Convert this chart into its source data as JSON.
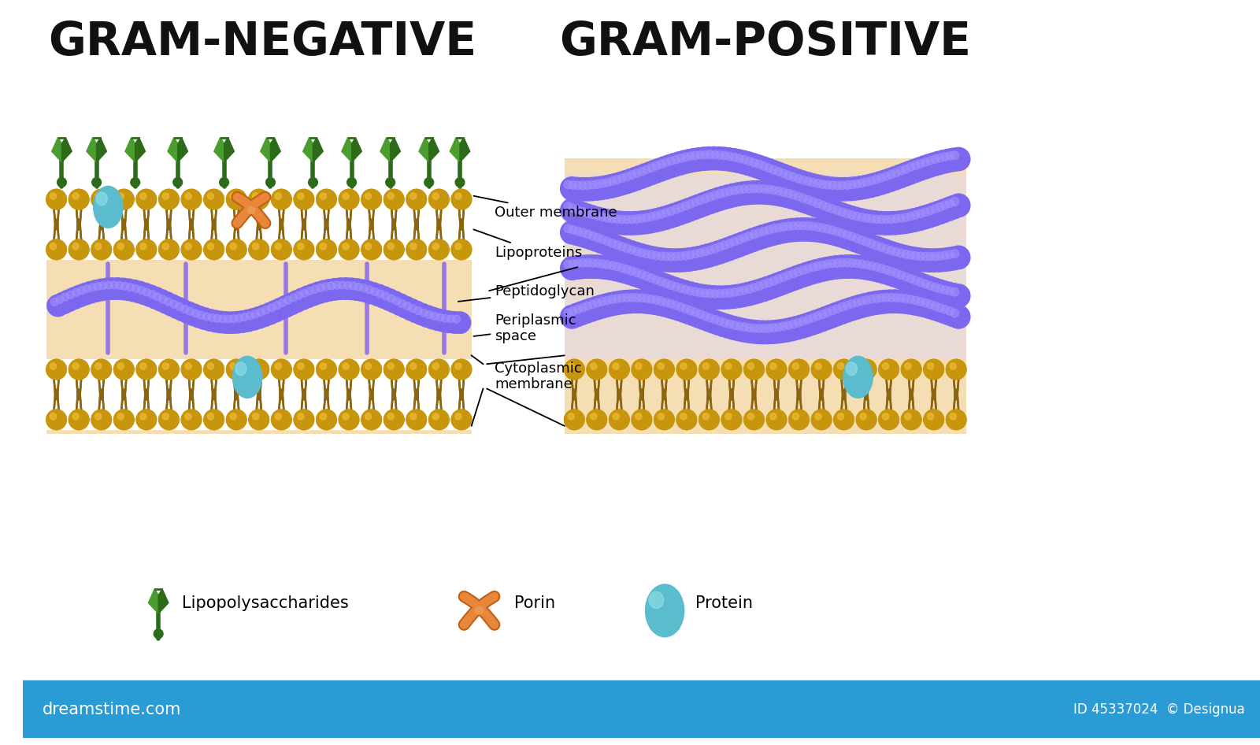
{
  "title_left": "GRAM-NEGATIVE",
  "title_right": "GRAM-POSITIVE",
  "bg_color": "#ffffff",
  "membrane_bg": "#f5deb3",
  "lipid_head_color": "#c8960c",
  "lipid_tail_color": "#8b6410",
  "purple_bead_color": "#7b68ee",
  "teal_protein_color": "#5abccc",
  "orange_porin_color": "#e8873a",
  "green_lps_color": "#4a9e30",
  "green_lps_dark": "#2d6b1a",
  "footer_color": "#2a9bd4",
  "labels": {
    "outer_membrane": "Outer membrane",
    "lipoproteins": "Lipoproteins",
    "peptidoglycan": "Peptidoglycan",
    "periplasmic": "Periplasmic\nspace",
    "cytoplasmic": "Cytoplasmic\nmembrane"
  },
  "legend_labels": [
    "Lipopolysaccharides",
    "Porin",
    "Protein"
  ],
  "footer_left": "dreamstime.com",
  "footer_right": "ID 45337024  © Designua"
}
